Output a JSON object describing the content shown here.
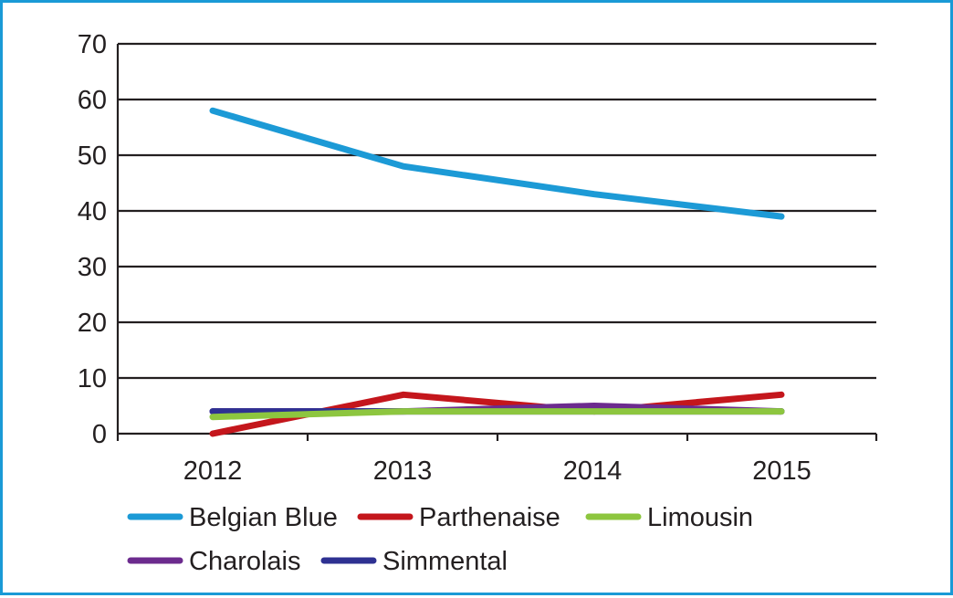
{
  "chart_data": {
    "type": "line",
    "title": "",
    "xlabel": "",
    "ylabel": "",
    "categories": [
      "2012",
      "2013",
      "2014",
      "2015"
    ],
    "ylim": [
      0,
      70
    ],
    "yticks": [
      0,
      10,
      20,
      30,
      40,
      50,
      60,
      70
    ],
    "grid": "horizontal",
    "legend_position": "bottom",
    "series": [
      {
        "name": "Belgian Blue",
        "color": "#1c9ad6",
        "values": [
          58,
          48,
          43,
          39
        ]
      },
      {
        "name": "Parthenaise",
        "color": "#c4161c",
        "values": [
          0,
          7,
          4,
          7
        ]
      },
      {
        "name": "Charolais",
        "color": "#6c2b8e",
        "values": [
          4,
          4,
          5,
          4
        ]
      },
      {
        "name": "Simmental",
        "color": "#2e3192",
        "values": [
          4,
          4,
          4,
          4
        ]
      },
      {
        "name": "Limousin",
        "color": "#8dc63f",
        "values": [
          3,
          4,
          4,
          4
        ]
      }
    ],
    "legend_order": [
      "Belgian Blue",
      "Parthenaise",
      "Limousin",
      "Charolais",
      "Simmental"
    ]
  }
}
